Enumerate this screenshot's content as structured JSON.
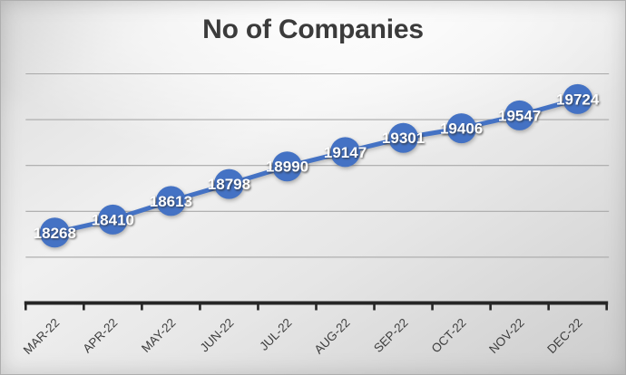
{
  "chart_data": {
    "type": "line",
    "title": "No of Companies",
    "categories": [
      "MAR-22",
      "APR-22",
      "MAY-22",
      "JUN-22",
      "JUL-22",
      "AUG-22",
      "SEP-22",
      "OCT-22",
      "NOV-22",
      "DEC-22"
    ],
    "values": [
      18268,
      18410,
      18613,
      18798,
      18990,
      19147,
      19301,
      19406,
      19547,
      19724
    ],
    "data_labels_shown": true,
    "data_label_values": [
      "18268",
      "18410",
      "18613",
      "18798",
      "18990",
      "19147",
      "19301",
      "19406",
      "19547",
      "19724"
    ],
    "xlabel": "",
    "ylabel": "",
    "ylim": [
      17500,
      20000
    ],
    "gridline_values": [
      18000,
      18500,
      19000,
      19500,
      20000
    ],
    "grid": "horizontal",
    "legend": "none",
    "y_axis_labels_visible": false,
    "colors": {
      "series_line": "#4472C4",
      "marker_fill": "#4472C4",
      "data_label_text": "#ffffff",
      "title_text": "#3b3b3b",
      "axis_line": "#262626",
      "tick_label_text": "#3d3d3d",
      "gridline": "#a9a9a9"
    }
  }
}
